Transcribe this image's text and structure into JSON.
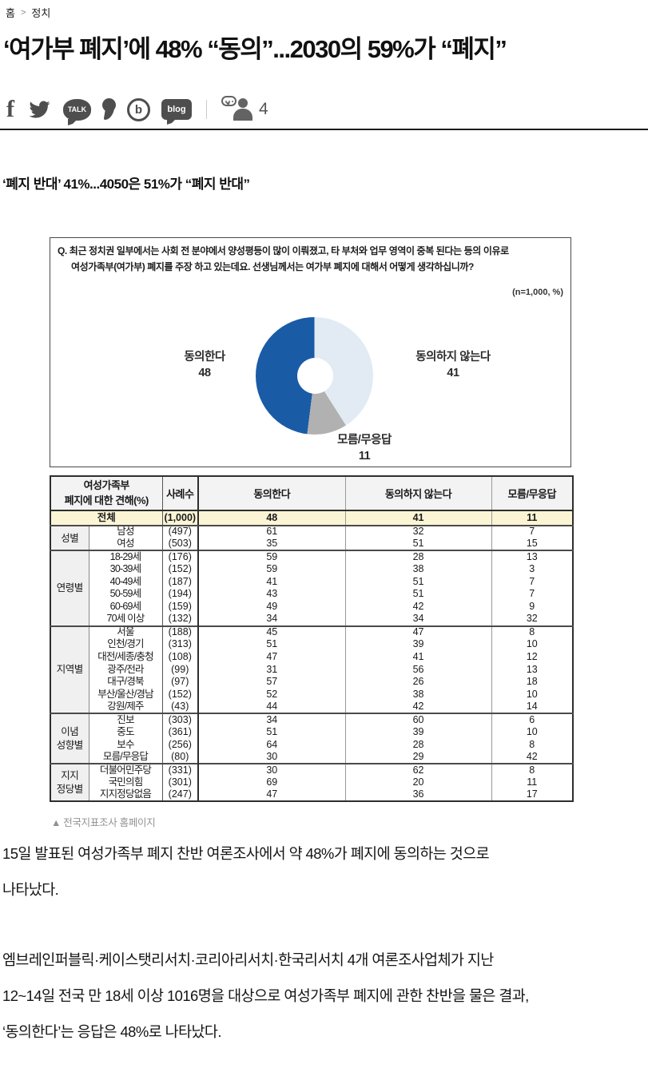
{
  "breadcrumb": {
    "home": "홈",
    "separator": ">",
    "section": "정치"
  },
  "headline": "‘여가부 폐지’에 48% “동의”...2030의 59%가 “폐지”",
  "social": {
    "icons": [
      {
        "name": "facebook",
        "glyph": "f"
      },
      {
        "name": "twitter"
      },
      {
        "name": "kakaotalk",
        "glyph": "TALK"
      },
      {
        "name": "kakaostory"
      },
      {
        "name": "band",
        "glyph": "b"
      },
      {
        "name": "blog",
        "glyph": "blog"
      }
    ],
    "comment_count": "4"
  },
  "subhead": "‘폐지 반대’ 41%...4050은 51%가 “폐지 반대”",
  "chart": {
    "question": "Q. 최근 정치권 일부에서는 사회 전 분야에서 양성평등이 많이 이뤄졌고, 타 부처와 업무 영역이 중복 된다는 등의 이유로\n여성가족부(여가부) 폐지를 주장 하고 있는데요. 선생님께서는 여가부 폐지에 대해서 어떻게 생각하십니까?",
    "n_label": "(n=1,000, %)"
  },
  "chart_data": {
    "type": "pie",
    "donut": true,
    "start_angle": "top",
    "direction": "clockwise",
    "n": 1000,
    "unit": "%",
    "slices": [
      {
        "label": "동의하지 않는다",
        "value": 41,
        "color": "#e2eaf4"
      },
      {
        "label": "모름/무응답",
        "value": 11,
        "color": "#b1b1b1"
      },
      {
        "label": "동의한다",
        "value": 48,
        "color": "#1a5ba6"
      }
    ]
  },
  "table": {
    "header": {
      "view": "여성가족부\n폐지에 대한 견해(%)",
      "n": "사례수",
      "agree": "동의한다",
      "disagree": "동의하지 않는다",
      "dk": "모름/무응답"
    },
    "total": {
      "label": "전체",
      "n": "(1,000)",
      "agree": "48",
      "disagree": "41",
      "dk": "11"
    },
    "groups": [
      {
        "label": "성별",
        "rows": [
          [
            "남성",
            "(497)",
            "61",
            "32",
            "7"
          ],
          [
            "여성",
            "(503)",
            "35",
            "51",
            "15"
          ]
        ]
      },
      {
        "label": "연령별",
        "rows": [
          [
            "18-29세",
            "(176)",
            "59",
            "28",
            "13"
          ],
          [
            "30-39세",
            "(152)",
            "59",
            "38",
            "3"
          ],
          [
            "40-49세",
            "(187)",
            "41",
            "51",
            "7"
          ],
          [
            "50-59세",
            "(194)",
            "43",
            "51",
            "7"
          ],
          [
            "60-69세",
            "(159)",
            "49",
            "42",
            "9"
          ],
          [
            "70세 이상",
            "(132)",
            "34",
            "34",
            "32"
          ]
        ]
      },
      {
        "label": "지역별",
        "rows": [
          [
            "서울",
            "(188)",
            "45",
            "47",
            "8"
          ],
          [
            "인천/경기",
            "(313)",
            "51",
            "39",
            "10"
          ],
          [
            "대전/세종/충청",
            "(108)",
            "47",
            "41",
            "12"
          ],
          [
            "광주/전라",
            "(99)",
            "31",
            "56",
            "13"
          ],
          [
            "대구/경북",
            "(97)",
            "57",
            "26",
            "18"
          ],
          [
            "부산/울산/경남",
            "(152)",
            "52",
            "38",
            "10"
          ],
          [
            "강원/제주",
            "(43)",
            "44",
            "42",
            "14"
          ]
        ]
      },
      {
        "label": "이념\n성향별",
        "rows": [
          [
            "진보",
            "(303)",
            "34",
            "60",
            "6"
          ],
          [
            "중도",
            "(361)",
            "51",
            "39",
            "10"
          ],
          [
            "보수",
            "(256)",
            "64",
            "28",
            "8"
          ],
          [
            "모름/무응답",
            "(80)",
            "30",
            "29",
            "42"
          ]
        ]
      },
      {
        "label": "지지\n정당별",
        "rows": [
          [
            "더불어민주당",
            "(331)",
            "30",
            "62",
            "8"
          ],
          [
            "국민의힘",
            "(301)",
            "69",
            "20",
            "11"
          ],
          [
            "지지정당없음",
            "(247)",
            "47",
            "36",
            "17"
          ]
        ]
      }
    ]
  },
  "caption": "▲ 전국지표조사 홈페이지",
  "paragraphs": [
    "15일 발표된 여성가족부 폐지 찬반 여론조사에서 약 48%가 폐지에 동의하는 것으로\n나타났다.",
    "엠브레인퍼블릭·케이스탯리서치·코리아리서치·한국리서치 4개 여론조사업체가 지난\n12~14일 전국 만 18세 이상 1016명을 대상으로 여성가족부 폐지에 관한 찬반을 물은 결과,\n‘동의한다’는 응답은 48%로 나타났다."
  ]
}
